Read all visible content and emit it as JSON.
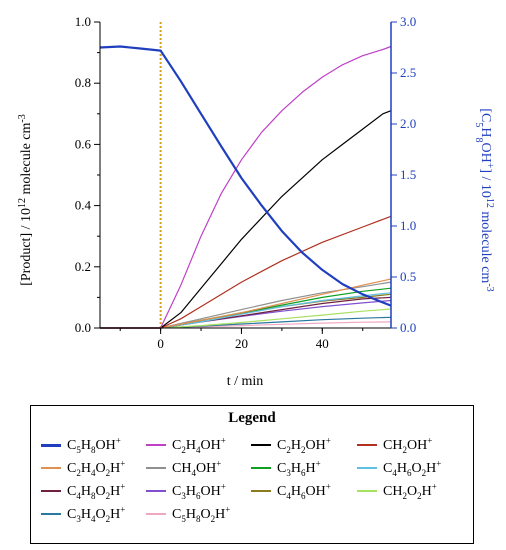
{
  "chart_data": {
    "type": "line",
    "xlabel": "t / min",
    "ylabel": "[Product] / 10^12 molecule cm^-3",
    "y2label": "[C5H8OH+] / 10^12 molecule cm^-3",
    "xlim": [
      -15,
      57
    ],
    "ylim": [
      0,
      1.0
    ],
    "y2lim": [
      0,
      3.0
    ],
    "x_ticks": [
      "0",
      "20",
      "40"
    ],
    "y_ticks": [
      "0.0",
      "0.2",
      "0.4",
      "0.6",
      "0.8",
      "1.0"
    ],
    "y2_ticks": [
      "0.0",
      "0.5",
      "1.0",
      "1.5",
      "2.0",
      "2.5",
      "3.0"
    ],
    "event_line_x": 0,
    "legend_title": "Legend",
    "series": [
      {
        "name": "C5H8OH+",
        "label_parts": [
          [
            "C",
            ""
          ],
          [
            "5",
            "sub"
          ],
          [
            "H",
            ""
          ],
          [
            "8",
            "sub"
          ],
          [
            "OH",
            ""
          ],
          [
            "+",
            "sup"
          ]
        ],
        "color": "#1f3fbf",
        "axis": "right",
        "x": [
          -15,
          -10,
          -5,
          0,
          2,
          5,
          10,
          15,
          20,
          25,
          30,
          35,
          40,
          45,
          50,
          55,
          57
        ],
        "y": [
          2.75,
          2.76,
          2.74,
          2.72,
          2.6,
          2.42,
          2.1,
          1.78,
          1.47,
          1.2,
          0.95,
          0.74,
          0.57,
          0.43,
          0.33,
          0.25,
          0.22
        ]
      },
      {
        "name": "C2H4OH+",
        "label_parts": [
          [
            "C",
            ""
          ],
          [
            "2",
            "sub"
          ],
          [
            "H",
            ""
          ],
          [
            "4",
            "sub"
          ],
          [
            "OH",
            ""
          ],
          [
            "+",
            "sup"
          ]
        ],
        "color": "#c040c8",
        "axis": "left",
        "x": [
          -15,
          0,
          5,
          10,
          15,
          20,
          25,
          30,
          35,
          40,
          45,
          50,
          55,
          57
        ],
        "y": [
          0,
          0,
          0.14,
          0.3,
          0.44,
          0.55,
          0.64,
          0.71,
          0.77,
          0.82,
          0.86,
          0.89,
          0.91,
          0.92
        ]
      },
      {
        "name": "C2H2OH+",
        "label_parts": [
          [
            "C",
            ""
          ],
          [
            "2",
            "sub"
          ],
          [
            "H",
            ""
          ],
          [
            "2",
            "sub"
          ],
          [
            "OH",
            ""
          ],
          [
            "+",
            "sup"
          ]
        ],
        "color": "#000000",
        "axis": "left",
        "x": [
          -15,
          0,
          5,
          10,
          15,
          20,
          25,
          30,
          35,
          40,
          45,
          50,
          55,
          57
        ],
        "y": [
          0,
          0,
          0.05,
          0.13,
          0.21,
          0.29,
          0.36,
          0.43,
          0.49,
          0.55,
          0.6,
          0.65,
          0.7,
          0.71
        ]
      },
      {
        "name": "CH2OH+",
        "label_parts": [
          [
            "CH",
            ""
          ],
          [
            "2",
            "sub"
          ],
          [
            "OH",
            ""
          ],
          [
            "+",
            "sup"
          ]
        ],
        "color": "#b03020",
        "axis": "left",
        "x": [
          -15,
          0,
          5,
          10,
          20,
          30,
          40,
          50,
          57
        ],
        "y": [
          0,
          0,
          0.03,
          0.07,
          0.15,
          0.22,
          0.28,
          0.33,
          0.365
        ]
      },
      {
        "name": "C2H4O2H+",
        "label_parts": [
          [
            "C",
            ""
          ],
          [
            "2",
            "sub"
          ],
          [
            "H",
            ""
          ],
          [
            "4",
            "sub"
          ],
          [
            "O",
            ""
          ],
          [
            "2",
            "sub"
          ],
          [
            "H",
            ""
          ],
          [
            "+",
            "sup"
          ]
        ],
        "color": "#e09050",
        "axis": "left",
        "x": [
          -15,
          0,
          10,
          20,
          30,
          40,
          50,
          57
        ],
        "y": [
          0,
          0,
          0.025,
          0.05,
          0.08,
          0.11,
          0.14,
          0.16
        ]
      },
      {
        "name": "CH4OH+",
        "label_parts": [
          [
            "CH",
            ""
          ],
          [
            "4",
            "sub"
          ],
          [
            "OH",
            ""
          ],
          [
            "+",
            "sup"
          ]
        ],
        "color": "#909090",
        "axis": "left",
        "x": [
          -15,
          0,
          10,
          20,
          30,
          40,
          50,
          57
        ],
        "y": [
          0,
          0,
          0.03,
          0.06,
          0.09,
          0.115,
          0.135,
          0.15
        ]
      },
      {
        "name": "C3H6H+",
        "label_parts": [
          [
            "C",
            ""
          ],
          [
            "3",
            "sub"
          ],
          [
            "H",
            ""
          ],
          [
            "6",
            "sub"
          ],
          [
            "H",
            ""
          ],
          [
            "+",
            "sup"
          ]
        ],
        "color": "#10a020",
        "axis": "left",
        "x": [
          -15,
          0,
          10,
          20,
          30,
          40,
          50,
          57
        ],
        "y": [
          0,
          0,
          0.025,
          0.05,
          0.075,
          0.1,
          0.12,
          0.13
        ]
      },
      {
        "name": "C4H6O2H+",
        "label_parts": [
          [
            "C",
            ""
          ],
          [
            "4",
            "sub"
          ],
          [
            "H",
            ""
          ],
          [
            "6",
            "sub"
          ],
          [
            "O",
            ""
          ],
          [
            "2",
            "sub"
          ],
          [
            "H",
            ""
          ],
          [
            "+",
            "sup"
          ]
        ],
        "color": "#60c0e0",
        "axis": "left",
        "x": [
          -15,
          0,
          10,
          20,
          30,
          40,
          50,
          57
        ],
        "y": [
          0,
          0,
          0.02,
          0.045,
          0.07,
          0.09,
          0.105,
          0.115
        ]
      },
      {
        "name": "C4H8O2H+",
        "label_parts": [
          [
            "C",
            ""
          ],
          [
            "4",
            "sub"
          ],
          [
            "H",
            ""
          ],
          [
            "8",
            "sub"
          ],
          [
            "O",
            ""
          ],
          [
            "2",
            "sub"
          ],
          [
            "H",
            ""
          ],
          [
            "+",
            "sup"
          ]
        ],
        "color": "#702040",
        "axis": "left",
        "x": [
          -15,
          0,
          10,
          20,
          30,
          40,
          50,
          57
        ],
        "y": [
          0,
          0,
          0.02,
          0.04,
          0.06,
          0.08,
          0.095,
          0.1
        ]
      },
      {
        "name": "C3H6OH+",
        "label_parts": [
          [
            "C",
            ""
          ],
          [
            "3",
            "sub"
          ],
          [
            "H",
            ""
          ],
          [
            "6",
            "sub"
          ],
          [
            "OH",
            ""
          ],
          [
            "+",
            "sup"
          ]
        ],
        "color": "#8050d0",
        "axis": "left",
        "x": [
          -15,
          0,
          10,
          20,
          30,
          40,
          50,
          57
        ],
        "y": [
          0,
          0,
          0.02,
          0.038,
          0.055,
          0.07,
          0.082,
          0.09
        ]
      },
      {
        "name": "C4H6OH+",
        "label_parts": [
          [
            "C",
            ""
          ],
          [
            "4",
            "sub"
          ],
          [
            "H",
            ""
          ],
          [
            "6",
            "sub"
          ],
          [
            "OH",
            ""
          ],
          [
            "+",
            "sup"
          ]
        ],
        "color": "#8a7a20",
        "axis": "left",
        "x": [
          -15,
          0,
          10,
          20,
          30,
          40,
          50,
          57
        ],
        "y": [
          0,
          0,
          0.025,
          0.048,
          0.07,
          0.088,
          0.1,
          0.11
        ]
      },
      {
        "name": "CH2O2H+",
        "label_parts": [
          [
            "CH",
            ""
          ],
          [
            "2",
            "sub"
          ],
          [
            "O",
            ""
          ],
          [
            "2",
            "sub"
          ],
          [
            "H",
            ""
          ],
          [
            "+",
            "sup"
          ]
        ],
        "color": "#a8e060",
        "axis": "left",
        "x": [
          -15,
          0,
          10,
          20,
          30,
          40,
          50,
          57
        ],
        "y": [
          0,
          0,
          0.008,
          0.018,
          0.03,
          0.042,
          0.055,
          0.062
        ]
      },
      {
        "name": "C3H4O2H+",
        "label_parts": [
          [
            "C",
            ""
          ],
          [
            "3",
            "sub"
          ],
          [
            "H",
            ""
          ],
          [
            "4",
            "sub"
          ],
          [
            "O",
            ""
          ],
          [
            "2",
            "sub"
          ],
          [
            "H",
            ""
          ],
          [
            "+",
            "sup"
          ]
        ],
        "color": "#2878a0",
        "axis": "left",
        "x": [
          -15,
          0,
          10,
          20,
          30,
          40,
          50,
          57
        ],
        "y": [
          0,
          0,
          0.006,
          0.013,
          0.02,
          0.027,
          0.032,
          0.035
        ]
      },
      {
        "name": "C5H8O2H+",
        "label_parts": [
          [
            "C",
            ""
          ],
          [
            "5",
            "sub"
          ],
          [
            "H",
            ""
          ],
          [
            "8",
            "sub"
          ],
          [
            "O",
            ""
          ],
          [
            "2",
            "sub"
          ],
          [
            "H",
            ""
          ],
          [
            "+",
            "sup"
          ]
        ],
        "color": "#f0a8c0",
        "axis": "left",
        "x": [
          -15,
          0,
          10,
          20,
          30,
          40,
          50,
          57
        ],
        "y": [
          0,
          0,
          0.004,
          0.008,
          0.012,
          0.016,
          0.019,
          0.02
        ]
      }
    ]
  }
}
